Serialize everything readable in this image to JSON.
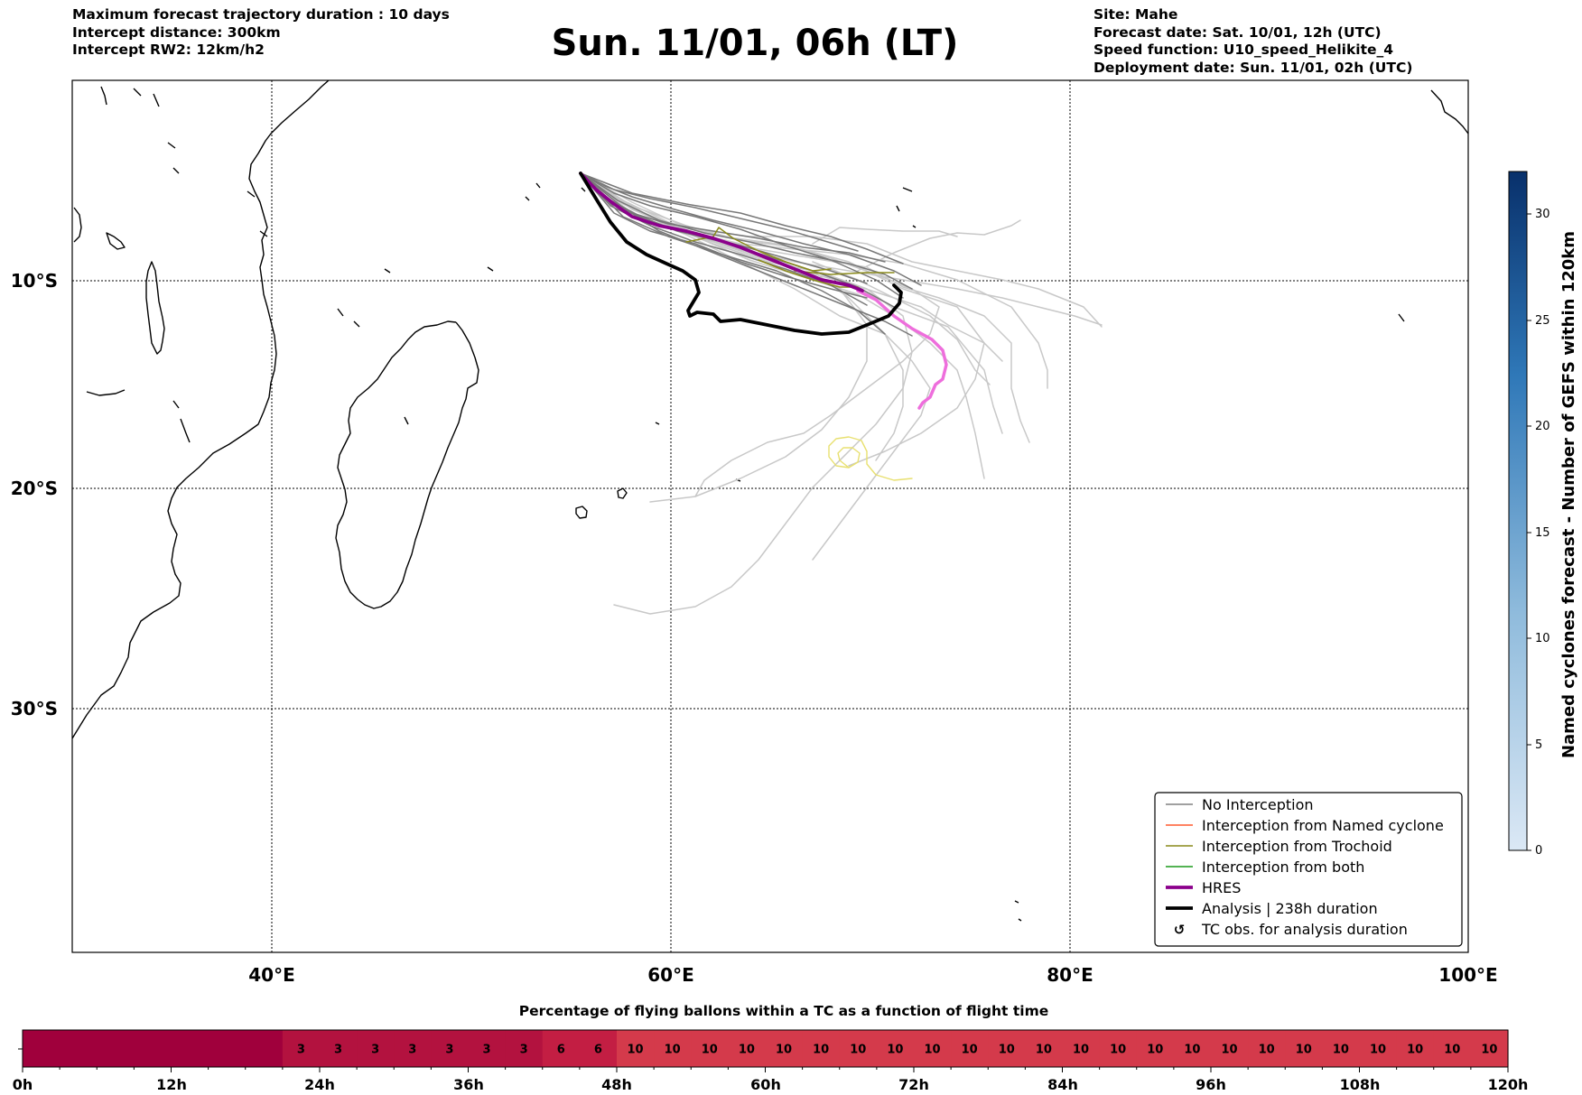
{
  "header": {
    "left": [
      "Maximum forecast trajectory duration : 10 days",
      "Intercept distance: 300km",
      "Intercept RW2: 12km/h2"
    ],
    "title": "Sun. 11/01, 06h (LT)",
    "right": [
      "Site: Mahe",
      "Forecast date: Sat. 10/01, 12h (UTC)",
      "Speed function: U10_speed_Helikite_4",
      "Deployment date: Sun. 11/01, 02h (UTC)"
    ]
  },
  "map": {
    "lon_labels": [
      "40°E",
      "60°E",
      "80°E",
      "100°E"
    ],
    "lat_labels": [
      "10°S",
      "20°S",
      "30°S"
    ],
    "lon_range": [
      30,
      100
    ],
    "lat_range": [
      -43,
      0
    ]
  },
  "legend": {
    "items": [
      {
        "label": "No Interception",
        "color": "#808080"
      },
      {
        "label": "Interception from Named cyclone",
        "color": "#ff5a2e"
      },
      {
        "label": "Interception from Trochoid",
        "color": "#8a8a1a"
      },
      {
        "label": "Interception from both",
        "color": "#1a9a1a"
      },
      {
        "label": "HRES",
        "color": "#8b008b"
      },
      {
        "label": "Analysis | 238h duration",
        "color": "#000000"
      },
      {
        "label": "TC obs. for analysis duration",
        "color": "#000000",
        "icon": "cyclone-symbol-icon"
      }
    ]
  },
  "colorbar": {
    "label": "Named cyclones forecast - Number of GEFS within 120km",
    "ticks": [
      "0",
      "5",
      "10",
      "15",
      "20",
      "25",
      "30"
    ],
    "range": [
      0,
      32
    ],
    "colors": [
      "#dbe8f5",
      "#08306b"
    ]
  },
  "timebar": {
    "title": "Percentage of flying ballons within a TC as a function of flight time",
    "tick_labels": [
      "0h",
      "12h",
      "24h",
      "36h",
      "48h",
      "60h",
      "72h",
      "84h",
      "96h",
      "108h",
      "120h"
    ],
    "cells": [
      "",
      "",
      "",
      "",
      "",
      "",
      "",
      "3",
      "3",
      "3",
      "3",
      "3",
      "3",
      "3",
      "6",
      "6",
      "10",
      "10",
      "10",
      "10",
      "10",
      "10",
      "10",
      "10",
      "10",
      "10",
      "10",
      "10",
      "10",
      "10",
      "10",
      "10",
      "10",
      "10",
      "10",
      "10",
      "10",
      "10",
      "10",
      "10"
    ],
    "colors": {
      "zero": "#a0003c",
      "three": "#b3123f",
      "six": "#c31e43",
      "ten": "#d43a4b"
    }
  }
}
